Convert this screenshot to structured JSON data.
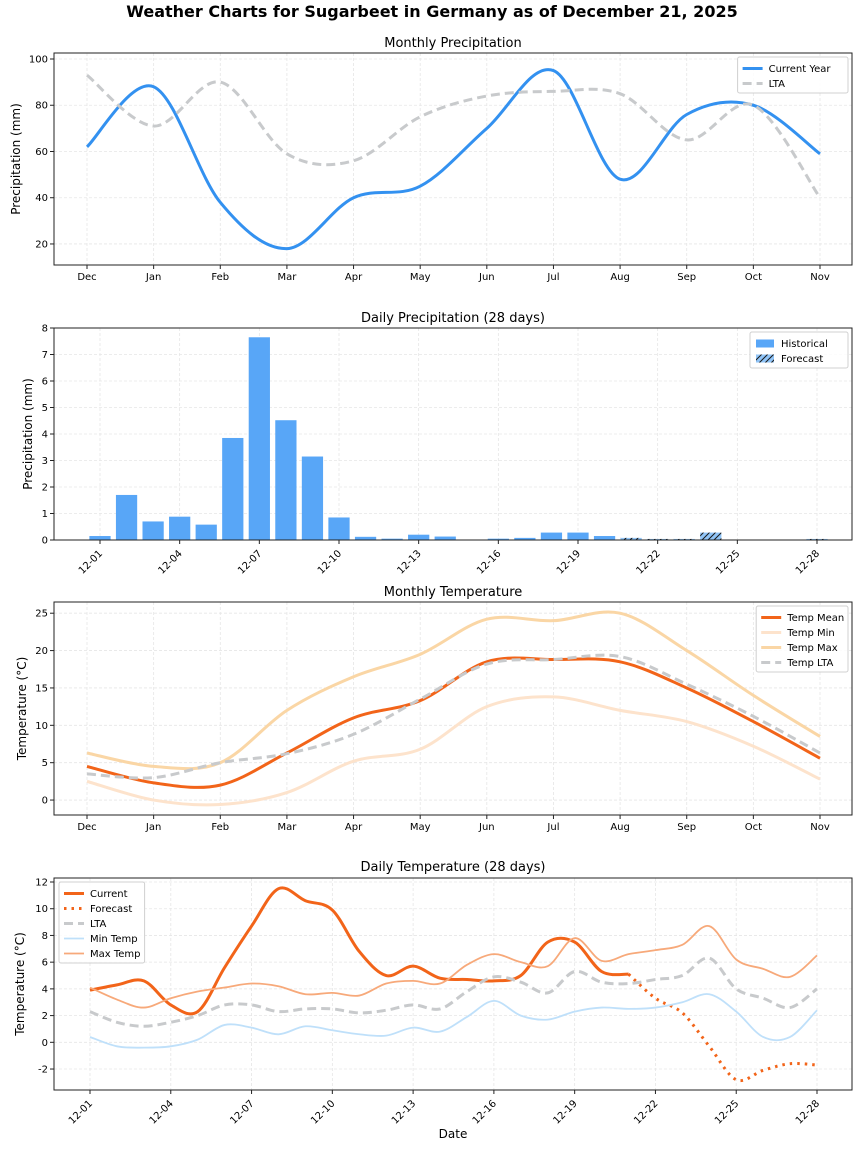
{
  "suptitle": "Weather Charts for Sugarbeet in Germany as of December 21, 2025",
  "colors": {
    "current_precip": "#3391f0",
    "lta": "#c8cacc",
    "bar_historical": "#58a6f7",
    "bar_forecast": "#90c4f7",
    "temp_mean": "#f26419",
    "temp_min_monthly": "#fde3cc",
    "temp_max_monthly": "#fad6a5",
    "daily_min": "#bfe0fa",
    "daily_max": "#f7a97a",
    "grid": "#e6e6e6"
  },
  "chart_data": [
    {
      "id": "monthly_precip",
      "type": "line",
      "title": "Monthly Precipitation",
      "xlabel": "",
      "ylabel": "Precipitation (mm)",
      "categories": [
        "Dec",
        "Jan",
        "Feb",
        "Mar",
        "Apr",
        "May",
        "Jun",
        "Jul",
        "Aug",
        "Sep",
        "Oct",
        "Nov"
      ],
      "ylim": [
        10.9,
        102.6
      ],
      "yticks": [
        20,
        40,
        60,
        80,
        100
      ],
      "grid": true,
      "legend": "top-right",
      "series": [
        {
          "name": "Current Year",
          "style": "solid",
          "color_key": "current_precip",
          "values": [
            62,
            88,
            38,
            18,
            40,
            45,
            70,
            95,
            48,
            76,
            80,
            59
          ]
        },
        {
          "name": "LTA",
          "style": "dashed",
          "color_key": "lta",
          "values": [
            93,
            71,
            90,
            59,
            56,
            75,
            84,
            86,
            85,
            65,
            80,
            40
          ]
        }
      ]
    },
    {
      "id": "daily_precip",
      "type": "bar",
      "title": "Daily Precipitation (28 days)",
      "xlabel": "",
      "ylabel": "Precipitation (mm)",
      "categories": [
        "12-01",
        "12-02",
        "12-03",
        "12-04",
        "12-05",
        "12-06",
        "12-07",
        "12-08",
        "12-09",
        "12-10",
        "12-11",
        "12-12",
        "12-13",
        "12-14",
        "12-15",
        "12-16",
        "12-17",
        "12-18",
        "12-19",
        "12-20",
        "12-21",
        "12-22",
        "12-23",
        "12-24",
        "12-25",
        "12-26",
        "12-27",
        "12-28"
      ],
      "xticks": [
        "12-01",
        "12-04",
        "12-07",
        "12-10",
        "12-13",
        "12-16",
        "12-19",
        "12-22",
        "12-25",
        "12-28"
      ],
      "ylim": [
        0,
        8
      ],
      "yticks": [
        0,
        1,
        2,
        3,
        4,
        5,
        6,
        7,
        8
      ],
      "grid": true,
      "legend": "top-right",
      "values": [
        0.15,
        1.7,
        0.7,
        0.88,
        0.58,
        3.85,
        7.65,
        4.52,
        3.15,
        0.85,
        0.12,
        0.05,
        0.2,
        0.13,
        0,
        0.05,
        0.08,
        0.28,
        0.28,
        0.15,
        0.08,
        0.04,
        0.04,
        0.28,
        0,
        0,
        0,
        0.04
      ],
      "forecast_start_index": 20,
      "series_names": [
        "Historical",
        "Forecast"
      ]
    },
    {
      "id": "monthly_temp",
      "type": "line",
      "title": "Monthly Temperature",
      "xlabel": "",
      "ylabel": "Temperature (°C)",
      "categories": [
        "Dec",
        "Jan",
        "Feb",
        "Mar",
        "Apr",
        "May",
        "Jun",
        "Jul",
        "Aug",
        "Sep",
        "Oct",
        "Nov"
      ],
      "ylim": [
        -2.0,
        26.5
      ],
      "yticks": [
        0,
        5,
        10,
        15,
        20,
        25
      ],
      "grid": true,
      "legend": "top-right",
      "series": [
        {
          "name": "Temp Mean",
          "style": "solid",
          "color_key": "temp_mean",
          "values": [
            4.5,
            2.3,
            2.0,
            6.3,
            11.0,
            13.3,
            18.5,
            18.8,
            18.5,
            15.0,
            10.5,
            5.6
          ]
        },
        {
          "name": "Temp Min",
          "style": "solid",
          "color_key": "temp_min_monthly",
          "values": [
            2.5,
            0.0,
            -0.6,
            1.0,
            5.2,
            6.8,
            12.5,
            13.8,
            12.0,
            10.5,
            7.2,
            2.8
          ]
        },
        {
          "name": "Temp Max",
          "style": "solid",
          "color_key": "temp_max_monthly",
          "values": [
            6.3,
            4.5,
            5.0,
            12.0,
            16.5,
            19.5,
            24.2,
            24.0,
            25.0,
            20.0,
            14.0,
            8.5
          ]
        },
        {
          "name": "Temp LTA",
          "style": "dashed",
          "color_key": "lta",
          "values": [
            3.5,
            3.0,
            5.0,
            6.2,
            8.8,
            13.5,
            18.2,
            18.8,
            19.2,
            15.5,
            11.2,
            6.3
          ]
        }
      ]
    },
    {
      "id": "daily_temp",
      "type": "line",
      "title": "Daily Temperature (28 days)",
      "xlabel": "Date",
      "ylabel": "Temperature (°C)",
      "categories": [
        "12-01",
        "12-02",
        "12-03",
        "12-04",
        "12-05",
        "12-06",
        "12-07",
        "12-08",
        "12-09",
        "12-10",
        "12-11",
        "12-12",
        "12-13",
        "12-14",
        "12-15",
        "12-16",
        "12-17",
        "12-18",
        "12-19",
        "12-20",
        "12-21",
        "12-22",
        "12-23",
        "12-24",
        "12-25",
        "12-26",
        "12-27",
        "12-28"
      ],
      "xticks": [
        "12-01",
        "12-04",
        "12-07",
        "12-10",
        "12-13",
        "12-16",
        "12-19",
        "12-22",
        "12-25",
        "12-28"
      ],
      "ylim": [
        -3.57,
        12.3
      ],
      "yticks": [
        -2,
        0,
        2,
        4,
        6,
        8,
        10,
        12
      ],
      "grid": true,
      "legend": "top-left",
      "series": [
        {
          "name": "Current",
          "style": "solid",
          "color_key": "temp_mean",
          "start_index": 0,
          "values": [
            3.9,
            4.3,
            4.6,
            2.8,
            2.3,
            5.6,
            8.7,
            11.5,
            10.6,
            9.9,
            6.8,
            5.0,
            5.7,
            4.8,
            4.7,
            4.6,
            5.0,
            7.5,
            7.5,
            5.3,
            5.1
          ]
        },
        {
          "name": "Forecast",
          "style": "dotted",
          "color_key": "temp_mean",
          "start_index": 20,
          "values": [
            5.1,
            3.3,
            2.2,
            -0.3,
            -2.8,
            -2.1,
            -1.6,
            -1.7
          ]
        },
        {
          "name": "LTA",
          "style": "dashed",
          "color_key": "lta",
          "start_index": 0,
          "values": [
            2.3,
            1.5,
            1.2,
            1.5,
            2.0,
            2.8,
            2.8,
            2.3,
            2.5,
            2.5,
            2.2,
            2.4,
            2.8,
            2.5,
            3.8,
            4.9,
            4.5,
            3.7,
            5.3,
            4.5,
            4.4,
            4.7,
            5.0,
            6.3,
            4.0,
            3.3,
            2.6,
            4.0
          ]
        },
        {
          "name": "Min Temp",
          "style": "thin",
          "color_key": "daily_min",
          "start_index": 0,
          "values": [
            0.4,
            -0.3,
            -0.4,
            -0.3,
            0.2,
            1.3,
            1.1,
            0.6,
            1.2,
            0.9,
            0.6,
            0.5,
            1.1,
            0.8,
            1.9,
            3.1,
            2.0,
            1.7,
            2.3,
            2.6,
            2.5,
            2.6,
            3.0,
            3.6,
            2.3,
            0.4,
            0.4,
            2.4
          ]
        },
        {
          "name": "Max Temp",
          "style": "thin",
          "color_key": "daily_max",
          "start_index": 0,
          "values": [
            4.1,
            3.2,
            2.6,
            3.3,
            3.8,
            4.1,
            4.4,
            4.2,
            3.6,
            3.7,
            3.5,
            4.4,
            4.6,
            4.4,
            5.8,
            6.6,
            6.0,
            5.7,
            7.8,
            6.1,
            6.6,
            6.9,
            7.3,
            8.7,
            6.2,
            5.5,
            4.9,
            6.5
          ]
        }
      ]
    }
  ]
}
